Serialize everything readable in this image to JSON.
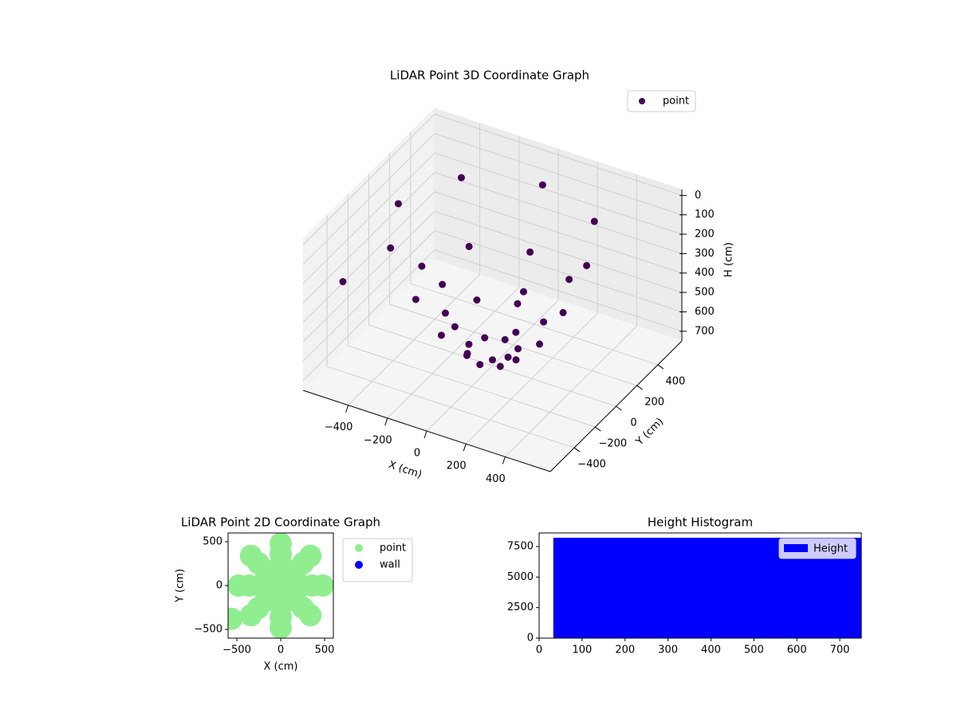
{
  "chart_data": [
    {
      "type": "scatter3d",
      "title": "LiDAR Point 3D Coordinate Graph",
      "xlabel": "X (cm)",
      "ylabel": "Y (cm)",
      "zlabel": "H (cm)",
      "xlim": [
        -630,
        630
      ],
      "ylim": [
        -630,
        630
      ],
      "zlim": [
        -30,
        750
      ],
      "z_inverted": true,
      "xticks": [
        {
          "value": -400,
          "label": "−400"
        },
        {
          "value": -200,
          "label": "−200"
        },
        0,
        200,
        400
      ],
      "yticks": [
        {
          "value": -400,
          "label": "−400"
        },
        {
          "value": -200,
          "label": "−200"
        },
        0,
        200,
        400
      ],
      "zticks": [
        0,
        100,
        200,
        300,
        400,
        500,
        600,
        700
      ],
      "grid": true,
      "legend": "upper right",
      "series": [
        {
          "name": "point",
          "color": "#440154",
          "x": [
            0,
            120,
            240,
            360,
            480,
            85,
            170,
            255,
            339,
            0,
            0,
            0,
            0,
            -85,
            -170,
            -255,
            -339,
            -120,
            -240,
            -360,
            -480,
            -85,
            -170,
            -255,
            -339,
            0,
            0,
            0,
            0,
            85,
            170,
            255,
            339,
            -560
          ],
          "y": [
            0,
            0,
            0,
            0,
            0,
            85,
            170,
            255,
            339,
            120,
            240,
            360,
            480,
            85,
            170,
            255,
            339,
            0,
            0,
            0,
            0,
            -85,
            -170,
            -255,
            -339,
            -120,
            -240,
            -360,
            -480,
            -85,
            -170,
            -255,
            -339,
            -380
          ],
          "z": [
            720,
            680,
            559,
            357,
            75,
            680,
            559,
            357,
            75,
            680,
            559,
            357,
            75,
            680,
            559,
            357,
            75,
            680,
            559,
            357,
            75,
            680,
            559,
            357,
            75,
            680,
            559,
            357,
            75,
            680,
            559,
            357,
            75,
            300
          ]
        }
      ]
    },
    {
      "type": "scatter",
      "title": "LiDAR Point 2D Coordinate Graph",
      "xlabel": "X (cm)",
      "ylabel": "Y (cm)",
      "xlim": [
        -600,
        600
      ],
      "ylim": [
        -600,
        600
      ],
      "xticks": [
        {
          "value": -500,
          "label": "−500"
        },
        0,
        500
      ],
      "yticks": [
        {
          "value": -500,
          "label": "−500"
        },
        0,
        500
      ],
      "legend": "outside upper right",
      "series": [
        {
          "name": "point",
          "color": "#90ee90",
          "x": [
            0,
            120,
            240,
            360,
            480,
            85,
            170,
            255,
            339,
            0,
            0,
            0,
            0,
            -85,
            -170,
            -255,
            -339,
            -120,
            -240,
            -360,
            -480,
            -85,
            -170,
            -255,
            -339,
            0,
            0,
            0,
            0,
            85,
            170,
            255,
            339,
            -560
          ],
          "y": [
            0,
            0,
            0,
            0,
            0,
            85,
            170,
            255,
            339,
            120,
            240,
            360,
            480,
            85,
            170,
            255,
            339,
            0,
            0,
            0,
            0,
            -85,
            -170,
            -255,
            -339,
            -120,
            -240,
            -360,
            -480,
            -85,
            -170,
            -255,
            -339,
            -380
          ]
        },
        {
          "name": "wall",
          "color": "blue",
          "x": [],
          "y": []
        }
      ]
    },
    {
      "type": "histogram",
      "title": "Height Histogram",
      "xlim": [
        0,
        750
      ],
      "ylim": [
        0,
        8610
      ],
      "xticks": [
        0,
        100,
        200,
        300,
        400,
        500,
        600,
        700
      ],
      "yticks": [
        0,
        2500,
        5000,
        7500
      ],
      "legend": "upper right",
      "series": [
        {
          "name": "Height",
          "color": "blue",
          "bins": [
            33,
            750
          ],
          "counts": [
            8220
          ]
        }
      ]
    }
  ]
}
